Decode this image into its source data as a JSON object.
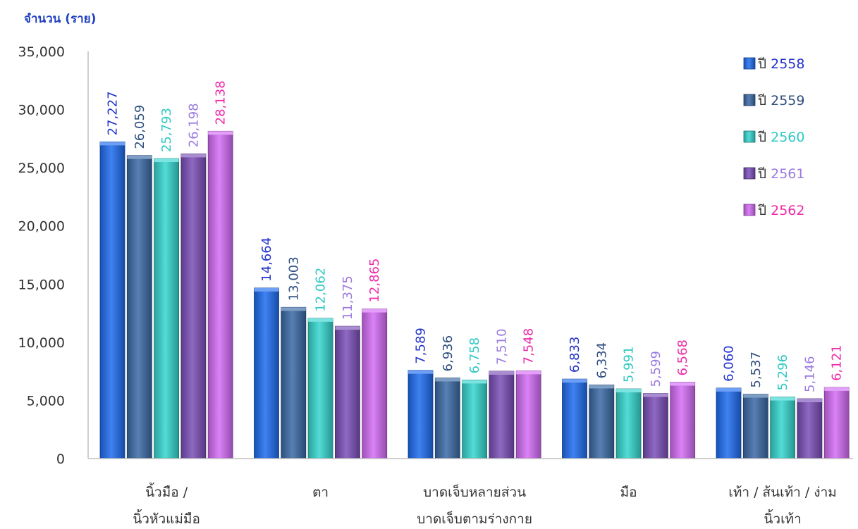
{
  "chart_data": {
    "type": "bar",
    "ylabel": "จำนวน (ราย)",
    "ylim": [
      0,
      35000
    ],
    "yticks": [
      "0",
      "5,000",
      "10,000",
      "15,000",
      "20,000",
      "25,000",
      "30,000",
      "35,000"
    ],
    "categories": [
      [
        "นิ้วมือ /",
        "นิ้วหัวแม่มือ"
      ],
      [
        "ตา"
      ],
      [
        "บาดเจ็บหลายส่วน",
        "บาดเจ็บตามร่างกาย"
      ],
      [
        "มือ"
      ],
      [
        "เท้า / ส้นเท้า / ง่าม",
        "นิ้วเท้า"
      ]
    ],
    "series": [
      {
        "name": "ปี 2558",
        "values": [
          27227,
          14664,
          7589,
          6833,
          6060
        ],
        "labels": [
          "27,227",
          "14,664",
          "7,589",
          "6,833",
          "6,060"
        ],
        "color": "#1e6cf0",
        "label_color": "#2233cc"
      },
      {
        "name": "ปี 2559",
        "values": [
          26059,
          13003,
          6936,
          6334,
          5537
        ],
        "labels": [
          "26,059",
          "13,003",
          "6,936",
          "6,334",
          "5,537"
        ],
        "color": "#3a6aa6",
        "label_color": "#2f4f80"
      },
      {
        "name": "ปี 2560",
        "values": [
          25793,
          12062,
          6758,
          5991,
          5296
        ],
        "labels": [
          "25,793",
          "12,062",
          "6,758",
          "5,991",
          "5,296"
        ],
        "color": "#35d6cf",
        "label_color": "#2ec8c4"
      },
      {
        "name": "ปี 2561",
        "values": [
          26198,
          11375,
          7510,
          5599,
          5146
        ],
        "labels": [
          "26,198",
          "11,375",
          "7,510",
          "5,599",
          "5,146"
        ],
        "color": "#7b4fb8",
        "label_color": "#9a7ae0"
      },
      {
        "name": "ปี 2562",
        "values": [
          28138,
          12865,
          7548,
          6568,
          6121
        ],
        "labels": [
          "28,138",
          "12,865",
          "7,548",
          "6,568",
          "6,121"
        ],
        "color": "#d46cf5",
        "label_color": "#ee2aa8"
      }
    ],
    "legend": "top-right",
    "grid": false
  }
}
